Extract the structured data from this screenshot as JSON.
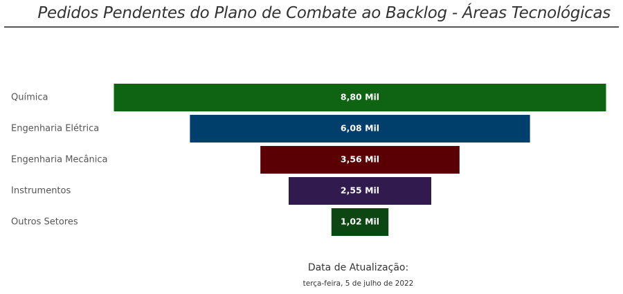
{
  "title": "Pedidos Pendentes do Plano de Combate ao Backlog - Áreas Tecnológicas",
  "footer": {
    "label": "Data de Atualização:",
    "date": "terça-feira, 5 de julho de 2022"
  },
  "chart_data": {
    "type": "bar",
    "subtype": "funnel",
    "orientation": "horizontal",
    "categories": [
      "Química",
      "Engenharia Elétrica",
      "Engenharia Mecânica",
      "Instrumentos",
      "Outros Setores"
    ],
    "values": [
      8800,
      6080,
      3560,
      2550,
      1020
    ],
    "data_labels": [
      "8,80 Mil",
      "6,08 Mil",
      "3,56 Mil",
      "2,55 Mil",
      "1,02 Mil"
    ],
    "colors": [
      "#0e6413",
      "#003f6b",
      "#5a0005",
      "#311a4e",
      "#0c4612"
    ],
    "title": "Pedidos Pendentes do Plano de Combate ao Backlog - Áreas Tecnológicas",
    "xlabel": "",
    "ylabel": "",
    "grid": false,
    "legend": "none"
  }
}
